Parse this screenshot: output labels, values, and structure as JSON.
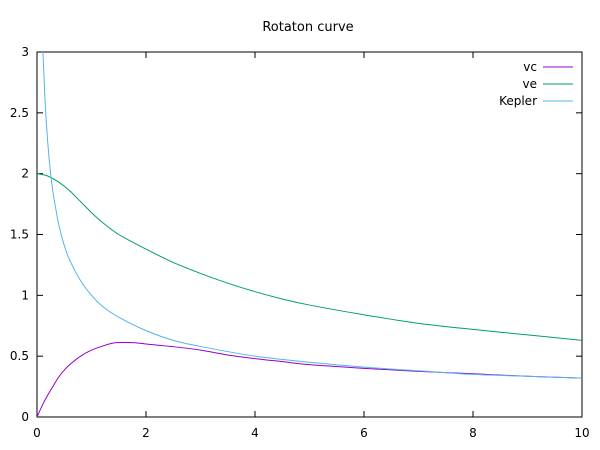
{
  "chart_data": {
    "type": "line",
    "title": "Rotaton curve",
    "xlabel": "",
    "ylabel": "",
    "xlim": [
      0,
      10
    ],
    "ylim": [
      0,
      3
    ],
    "x_ticks": [
      "0",
      "2",
      "4",
      "6",
      "8",
      "10"
    ],
    "y_ticks": [
      "0",
      "0.5",
      "1",
      "1.5",
      "2",
      "2.5",
      "3"
    ],
    "grid": false,
    "legend_position": "top-right",
    "series": [
      {
        "name": "vc",
        "color": "#9400d3",
        "x": [
          0,
          0.1,
          0.2,
          0.3,
          0.4,
          0.5,
          0.6,
          0.8,
          1.0,
          1.2,
          1.4,
          1.6,
          1.8,
          2.0,
          2.5,
          3.0,
          3.5,
          4.0,
          4.5,
          5.0,
          6.0,
          7.0,
          8.0,
          9.0,
          10.0
        ],
        "y": [
          0,
          0.098,
          0.183,
          0.257,
          0.33,
          0.385,
          0.43,
          0.5,
          0.55,
          0.582,
          0.608,
          0.612,
          0.61,
          0.6,
          0.578,
          0.55,
          0.51,
          0.48,
          0.455,
          0.43,
          0.4,
          0.375,
          0.355,
          0.335,
          0.32
        ]
      },
      {
        "name": "ve",
        "color": "#009e73",
        "x": [
          0,
          0.2,
          0.4,
          0.6,
          0.8,
          1.0,
          1.2,
          1.5,
          2.0,
          2.5,
          3.0,
          3.5,
          4.0,
          4.5,
          5.0,
          6.0,
          7.0,
          8.0,
          9.0,
          10.0
        ],
        "y": [
          2.0,
          1.98,
          1.93,
          1.86,
          1.77,
          1.68,
          1.6,
          1.5,
          1.38,
          1.27,
          1.18,
          1.1,
          1.03,
          0.97,
          0.92,
          0.84,
          0.77,
          0.72,
          0.675,
          0.63
        ]
      },
      {
        "name": "Kepler",
        "color": "#56b4e9",
        "x": [
          0.11,
          0.15,
          0.2,
          0.25,
          0.3,
          0.4,
          0.5,
          0.6,
          0.8,
          1.0,
          1.2,
          1.5,
          2.0,
          2.5,
          3.0,
          4.0,
          5.0,
          6.0,
          7.0,
          8.0,
          9.0,
          10.0
        ],
        "y": [
          3.0,
          2.58,
          2.24,
          2.0,
          1.83,
          1.58,
          1.41,
          1.29,
          1.12,
          1.0,
          0.91,
          0.82,
          0.71,
          0.63,
          0.58,
          0.5,
          0.45,
          0.41,
          0.38,
          0.35,
          0.335,
          0.32
        ]
      }
    ]
  }
}
